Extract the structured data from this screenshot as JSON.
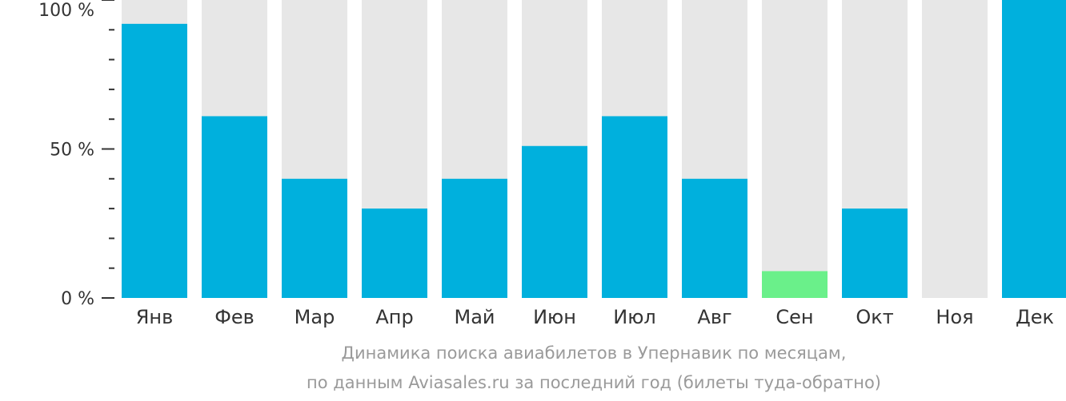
{
  "chart_data": {
    "type": "bar",
    "categories": [
      "Янв",
      "Фев",
      "Мар",
      "Апр",
      "Май",
      "Июн",
      "Июл",
      "Авг",
      "Сен",
      "Окт",
      "Ноя",
      "Дек"
    ],
    "values": [
      92,
      61,
      40,
      30,
      40,
      51,
      61,
      40,
      9,
      30,
      0,
      100
    ],
    "highlight_index": 8,
    "ylim": [
      0,
      100
    ],
    "yticks": [
      {
        "value": 0,
        "label": "0 %"
      },
      {
        "value": 50,
        "label": "50 %"
      },
      {
        "value": 100,
        "label": "100 %"
      }
    ],
    "minor_tick_step": 10,
    "title": "",
    "xlabel": "",
    "ylabel": ""
  },
  "caption": {
    "line1": "Динамика поиска авиабилетов в Упернавик по месяцам,",
    "line2": "по данным Aviasales.ru за последний год (билеты туда-обратно)"
  },
  "colors": {
    "bar": "#00b0dd",
    "highlight": "#6af08a",
    "track": "#e7e7e7",
    "axis": "#333333"
  }
}
